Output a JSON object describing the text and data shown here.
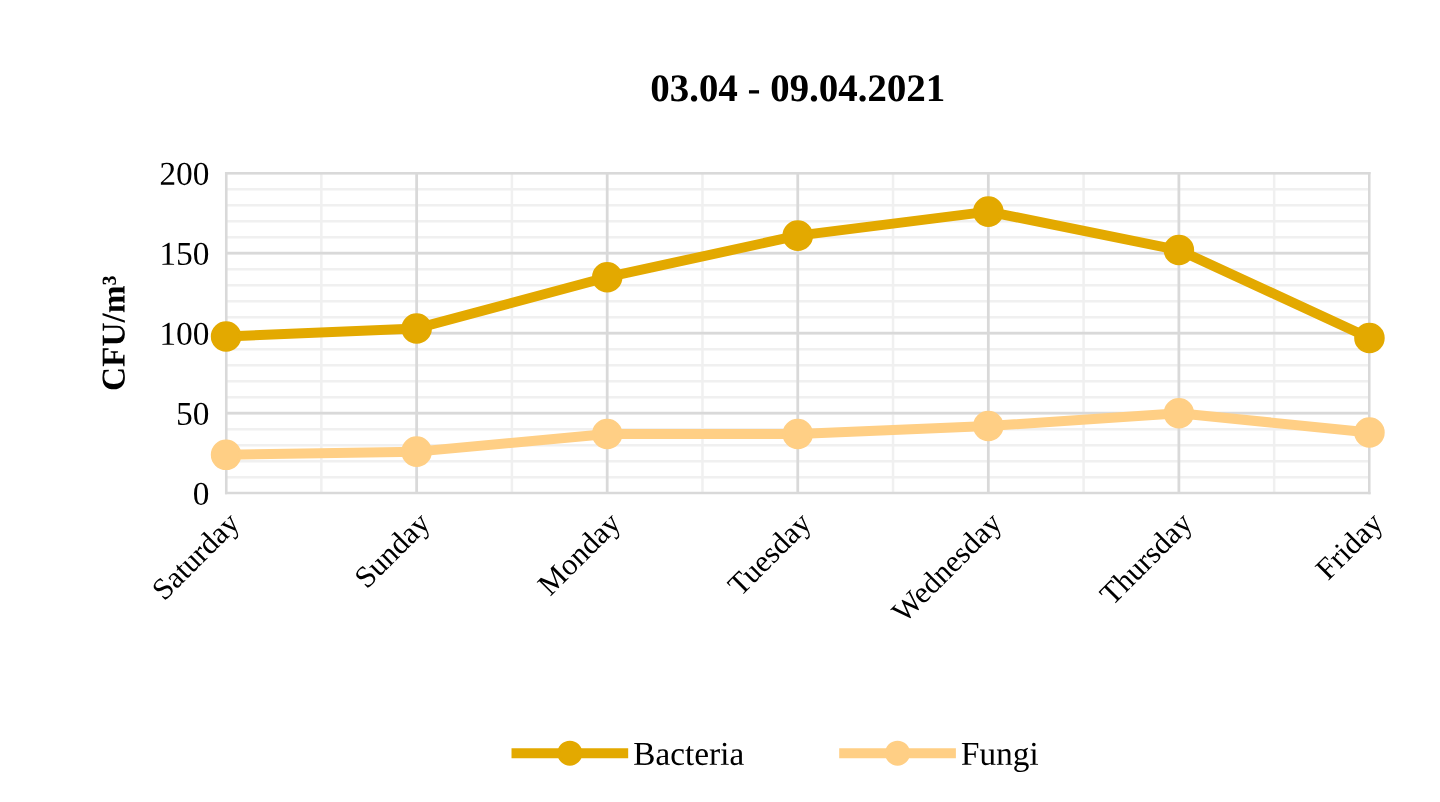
{
  "chart_data": {
    "type": "line",
    "title": "03.04 - 09.04.2021",
    "ylabel": "CFU/m³",
    "categories": [
      "Saturday",
      "Sunday",
      "Monday",
      "Tuesday",
      "Wednesday",
      "Thursday",
      "Friday"
    ],
    "series": [
      {
        "name": "Bacteria",
        "color": "#e3a900",
        "values": [
          98,
          103,
          135,
          161,
          176,
          152,
          97
        ]
      },
      {
        "name": "Fungi",
        "color": "#ffcf85",
        "values": [
          24,
          26,
          37,
          37,
          42,
          50,
          38
        ]
      }
    ],
    "ylim": [
      0,
      200
    ],
    "yticks": [
      0,
      50,
      100,
      150,
      200
    ],
    "grid": true,
    "legend": "bottom",
    "marker": "circle",
    "line_style": "solid"
  }
}
